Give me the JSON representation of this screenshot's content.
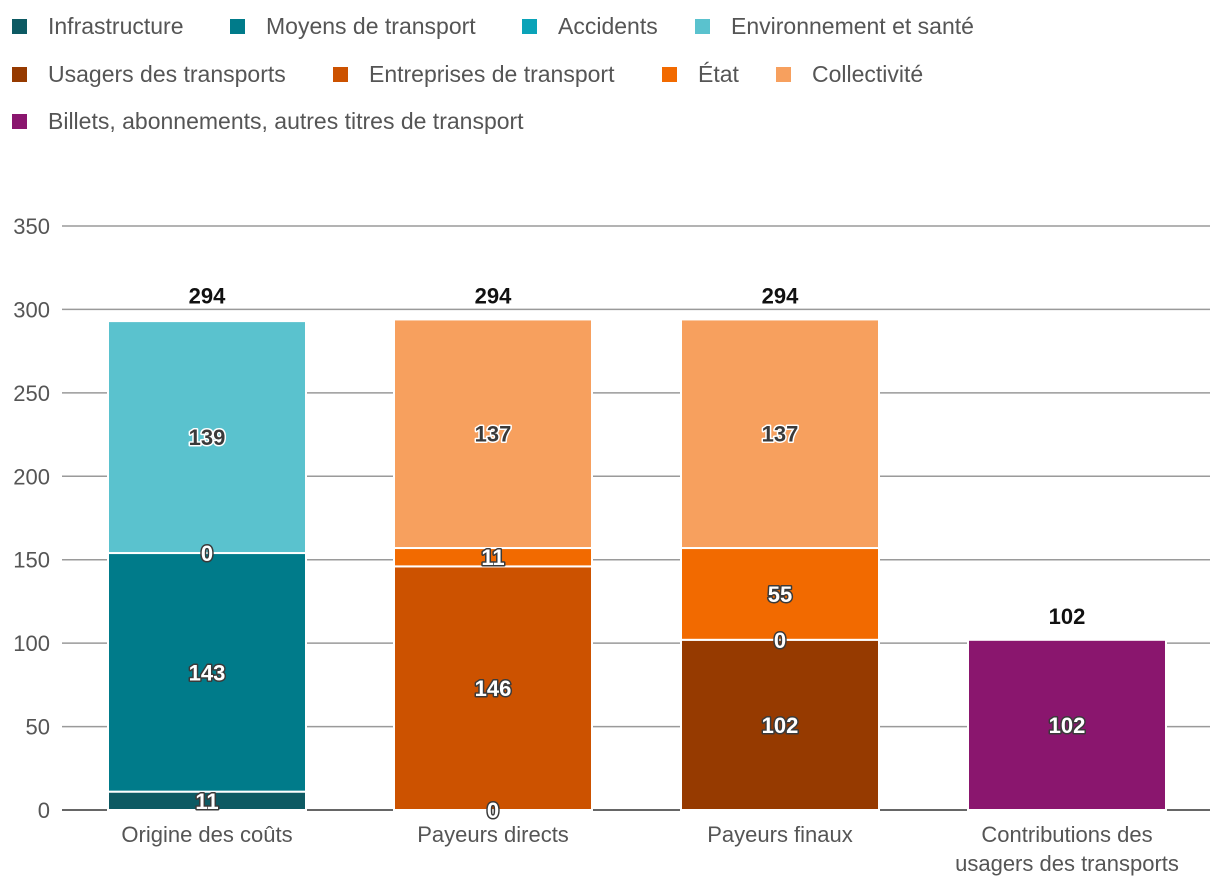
{
  "chart_data": {
    "type": "bar",
    "stacked": true,
    "title": "",
    "xlabel": "",
    "ylabel": "",
    "ylim": [
      0,
      350
    ],
    "yticks": [
      0,
      50,
      100,
      150,
      200,
      250,
      300,
      350
    ],
    "grid": true,
    "legend_position": "top-left",
    "categories": [
      "Origine des coûts",
      "Payeurs directs",
      "Payeurs finaux",
      "Contributions des usagers des transports"
    ],
    "category_lines": [
      [
        "Origine des coûts"
      ],
      [
        "Payeurs directs"
      ],
      [
        "Payeurs finaux"
      ],
      [
        "Contributions des",
        "usagers des transports"
      ]
    ],
    "series": [
      {
        "name": "Infrastructure",
        "color": "#0d5a63",
        "values": [
          11,
          null,
          null,
          null
        ]
      },
      {
        "name": "Moyens de transport",
        "color": "#007b8a",
        "values": [
          143,
          null,
          null,
          null
        ]
      },
      {
        "name": "Accidents",
        "color": "#0aa3b8",
        "values": [
          0,
          null,
          null,
          null
        ]
      },
      {
        "name": "Environnement et santé",
        "color": "#5ac2ce",
        "values": [
          139,
          null,
          null,
          null
        ]
      },
      {
        "name": "Usagers des transports",
        "color": "#963a00",
        "values": [
          null,
          0,
          102,
          null
        ]
      },
      {
        "name": "Entreprises de transport",
        "color": "#cc5200",
        "values": [
          null,
          146,
          0,
          null
        ]
      },
      {
        "name": "État",
        "color": "#f26a00",
        "values": [
          null,
          11,
          55,
          null
        ]
      },
      {
        "name": "Collectivité",
        "color": "#f7a05e",
        "values": [
          null,
          137,
          137,
          null
        ]
      },
      {
        "name": "Billets, abonnements, autres titres de transport",
        "color": "#8a166e",
        "values": [
          null,
          null,
          null,
          102
        ]
      }
    ],
    "totals": [
      294,
      294,
      294,
      102
    ]
  }
}
